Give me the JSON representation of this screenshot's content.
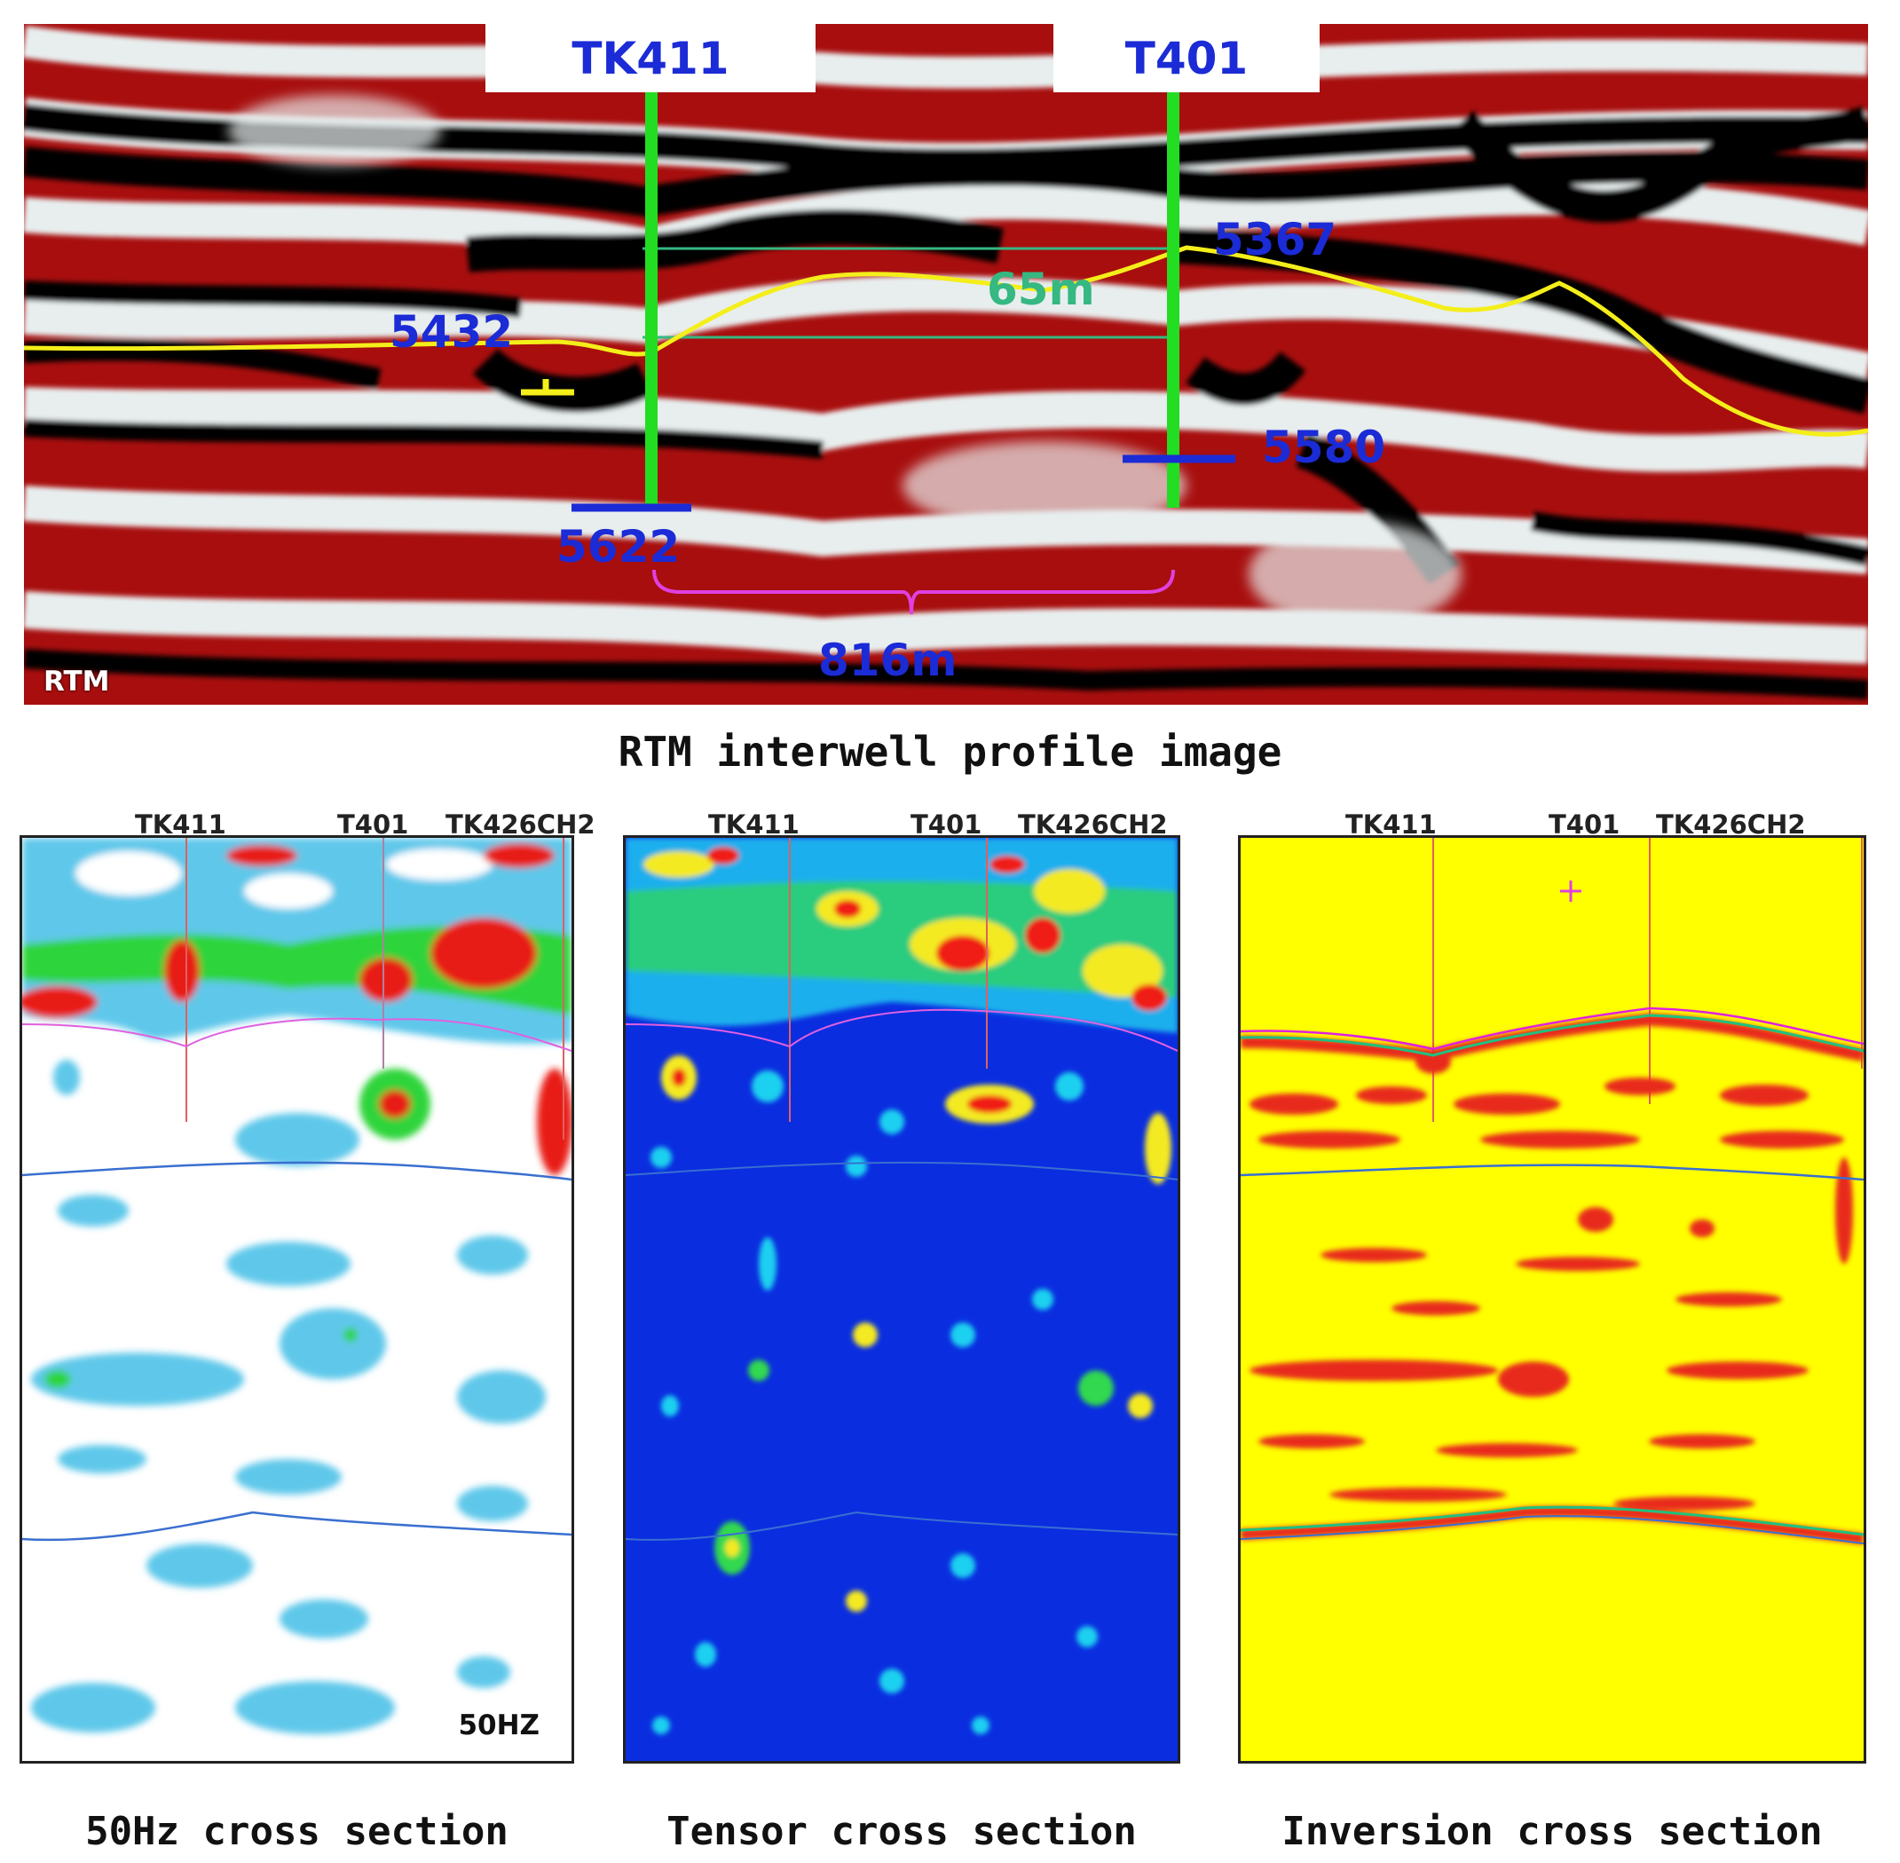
{
  "rtm_panel": {
    "wells": [
      {
        "name": "TK411"
      },
      {
        "name": "T401"
      }
    ],
    "depth_labels": [
      "5432",
      "5367",
      "5580",
      "5622"
    ],
    "thickness_label": "65m",
    "distance_label": "816m",
    "corner_label": "RTM",
    "caption": "RTM interwell profile image",
    "colors": {
      "red": "#a80e0e",
      "black": "#050505",
      "horizon": "#f4ee1a",
      "well": "#22dd22",
      "label_blue": "#1b2bd6",
      "bracket": "#e040e0",
      "thickness_lines": "#35b882"
    }
  },
  "cross_sections": [
    {
      "id": "50hz",
      "well_labels": [
        "TK411",
        "T401",
        "TK426CH2"
      ],
      "corner_label": "50HZ",
      "caption": "50Hz cross section",
      "colors": {
        "background": "#ffffff",
        "anomaly": "#5fc8ea",
        "hot": "#e81c12",
        "mid": "#2ed43a"
      }
    },
    {
      "id": "tensor",
      "well_labels": [
        "TK411",
        "T401",
        "TK426CH2"
      ],
      "caption": "Tensor cross section",
      "colors": {
        "background": "#0a2de0",
        "spot": "#1fd0f0",
        "hot": "#f01a12",
        "mid": "#f4ea20"
      }
    },
    {
      "id": "inversion",
      "well_labels": [
        "TK411",
        "T401",
        "TK426CH2"
      ],
      "caption": "Inversion cross section",
      "colors": {
        "background": "#ffff00",
        "anomaly": "#e8291a",
        "horizon": "#3a6fd0",
        "top_line": "#e020e0"
      }
    }
  ]
}
